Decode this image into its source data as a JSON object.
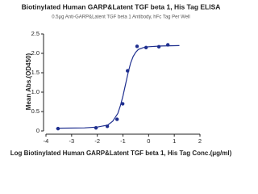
{
  "chart_data": {
    "type": "scatter",
    "title": "Biotinylated Human GARP&Latent TGF beta 1, His Tag ELISA",
    "subtitle": "0.5μg Anti-GARP&Latent TGF beta 1 Antibody, hFc Tag Per Well",
    "x_label": "Log Biotinylated Human GARP&Latent TGF beta 1, His Tag Conc.(μg/ml)",
    "y_label": "Mean Abs.(OD450)",
    "color": "#1f2f8f",
    "x": [
      -3.53,
      -2.05,
      -1.61,
      -1.23,
      -1.01,
      -0.82,
      -0.45,
      -0.1,
      0.4,
      0.75
    ],
    "values": [
      0.06,
      0.08,
      0.12,
      0.3,
      0.7,
      1.55,
      2.18,
      2.15,
      2.17,
      2.22
    ],
    "curve": {
      "x": [
        -3.6,
        -2.5,
        -2,
        -1.6,
        -1.4,
        -1.2,
        -1.1,
        -1,
        -0.9,
        -0.8,
        -0.7,
        -0.6,
        -0.5,
        -0.4,
        -0.2,
        0,
        0.5,
        1.2
      ],
      "values": [
        0.07,
        0.08,
        0.1,
        0.15,
        0.25,
        0.45,
        0.65,
        0.9,
        1.2,
        1.5,
        1.75,
        1.92,
        2.03,
        2.1,
        2.15,
        2.17,
        2.19,
        2.2
      ]
    },
    "xlim": [
      -4,
      2
    ],
    "xticks": [
      -4,
      -3,
      -2,
      -1,
      0,
      1,
      2
    ],
    "ylim": [
      0,
      2.5
    ],
    "yticks": [
      0,
      0.5,
      {
        "value": 1,
        "label": "1.0"
      },
      1.5,
      {
        "value": 2,
        "label": "2.0"
      },
      2.5
    ]
  }
}
